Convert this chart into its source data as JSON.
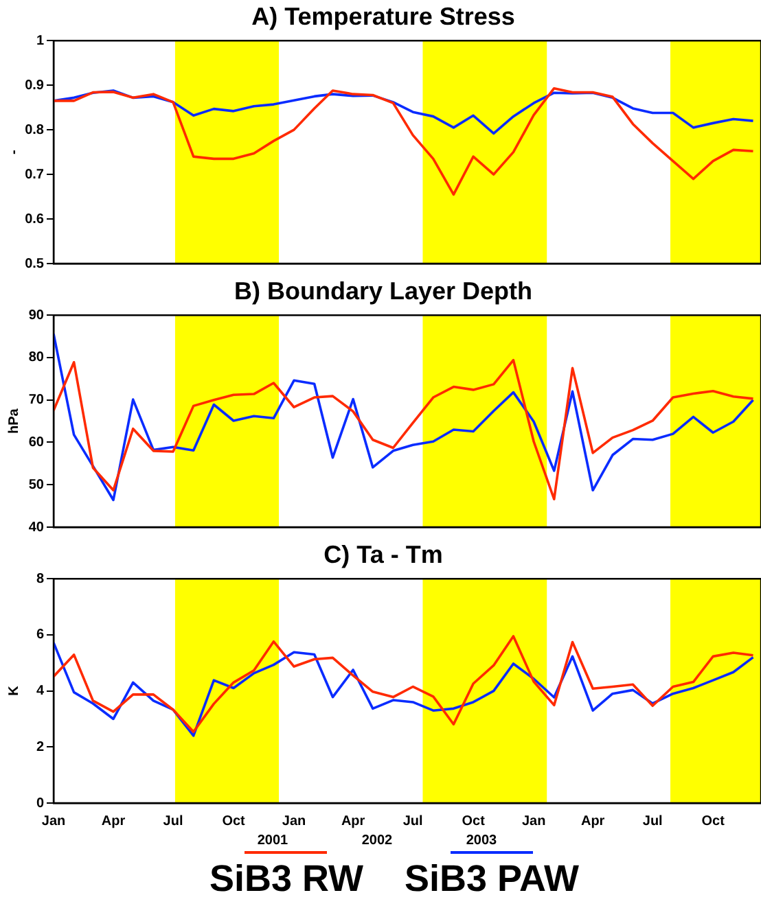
{
  "chart_data": [
    {
      "type": "line",
      "title": "A) Temperature Stress",
      "ylabel": "-",
      "marker": "none",
      "tick_labels": "y",
      "x": [
        "2000-01",
        "2000-02",
        "2000-03",
        "2000-04",
        "2000-05",
        "2000-06",
        "2000-07",
        "2000-08",
        "2000-09",
        "2000-10",
        "2000-11",
        "2000-12",
        "2001-01",
        "2001-02",
        "2001-03",
        "2001-04",
        "2001-05",
        "2001-06",
        "2001-07",
        "2001-08",
        "2001-09",
        "2001-10",
        "2001-11",
        "2001-12",
        "2002-01",
        "2002-02",
        "2002-03",
        "2002-04",
        "2002-05",
        "2002-06",
        "2002-07",
        "2002-08",
        "2002-09",
        "2002-10",
        "2002-11",
        "2002-12"
      ],
      "xlim": [
        "2000-01",
        "2002-12-13"
      ],
      "xticks": [
        {
          "value": "2000-01",
          "label": null
        },
        {
          "value": "2000-04",
          "label": null
        },
        {
          "value": "2000-07",
          "label": null
        },
        {
          "value": "2000-10",
          "label": null
        },
        {
          "value": "2001-01",
          "label": null
        },
        {
          "value": "2001-04",
          "label": null
        },
        {
          "value": "2001-07",
          "label": null
        },
        {
          "value": "2001-10",
          "label": null
        },
        {
          "value": "2002-01",
          "label": null
        },
        {
          "value": "2002-04",
          "label": null
        },
        {
          "value": "2002-07",
          "label": null
        },
        {
          "value": "2002-10",
          "label": null
        }
      ],
      "ylim": [
        0.5,
        1.0
      ],
      "yticks": [
        0.5,
        0.6,
        0.7,
        0.8,
        0.9,
        1.0
      ],
      "bands": [
        {
          "axis": "x",
          "from": "2000-07-04",
          "to": "2000-12-09",
          "color": "#ffff00"
        },
        {
          "axis": "x",
          "from": "2001-07-16",
          "to": "2002-01-21",
          "color": "#ffff00"
        },
        {
          "axis": "x",
          "from": "2002-07-28",
          "to": "2002-12-13",
          "color": "#ffff00"
        }
      ],
      "series": [
        {
          "color": "#ff2a00",
          "values": [
            0.865,
            0.865,
            0.884,
            0.885,
            0.872,
            0.88,
            0.862,
            0.74,
            0.735,
            0.735,
            0.747,
            0.775,
            0.8,
            0.848,
            0.888,
            0.88,
            0.878,
            0.86,
            0.788,
            0.735,
            0.655,
            0.74,
            0.7,
            0.75,
            0.833,
            0.893,
            0.884,
            0.884,
            0.874,
            0.813,
            0.77,
            0.73,
            0.69,
            0.73,
            0.755,
            0.752
          ]
        },
        {
          "color": "#0a2cff",
          "values": [
            0.865,
            0.872,
            0.883,
            0.888,
            0.872,
            0.875,
            0.862,
            0.832,
            0.847,
            0.842,
            0.853,
            0.857,
            0.866,
            0.875,
            0.88,
            0.876,
            0.877,
            0.862,
            0.84,
            0.83,
            0.805,
            0.832,
            0.792,
            0.83,
            0.86,
            0.883,
            0.882,
            0.883,
            0.872,
            0.848,
            0.838,
            0.838,
            0.805,
            0.815,
            0.824,
            0.82
          ]
        }
      ]
    },
    {
      "type": "line",
      "title": "B) Boundary Layer Depth",
      "ylabel": "hPa",
      "marker": "none",
      "tick_labels": "y",
      "x": [
        "2000-01",
        "2000-02",
        "2000-03",
        "2000-04",
        "2000-05",
        "2000-06",
        "2000-07",
        "2000-08",
        "2000-09",
        "2000-10",
        "2000-11",
        "2000-12",
        "2001-01",
        "2001-02",
        "2001-03",
        "2001-04",
        "2001-05",
        "2001-06",
        "2001-07",
        "2001-08",
        "2001-09",
        "2001-10",
        "2001-11",
        "2001-12",
        "2002-01",
        "2002-02",
        "2002-03",
        "2002-04",
        "2002-05",
        "2002-06",
        "2002-07",
        "2002-08",
        "2002-09",
        "2002-10",
        "2002-11",
        "2002-12"
      ],
      "xlim": [
        "2000-01",
        "2002-12-13"
      ],
      "xticks": [
        {
          "value": "2000-01",
          "label": null
        },
        {
          "value": "2000-04",
          "label": null
        },
        {
          "value": "2000-07",
          "label": null
        },
        {
          "value": "2000-10",
          "label": null
        },
        {
          "value": "2001-01",
          "label": null
        },
        {
          "value": "2001-04",
          "label": null
        },
        {
          "value": "2001-07",
          "label": null
        },
        {
          "value": "2001-10",
          "label": null
        },
        {
          "value": "2002-01",
          "label": null
        },
        {
          "value": "2002-04",
          "label": null
        },
        {
          "value": "2002-07",
          "label": null
        },
        {
          "value": "2002-10",
          "label": null
        }
      ],
      "ylim": [
        40,
        90
      ],
      "yticks": [
        40,
        50,
        60,
        70,
        80,
        90
      ],
      "bands": [
        {
          "axis": "x",
          "from": "2000-07-04",
          "to": "2000-12-09",
          "color": "#ffff00"
        },
        {
          "axis": "x",
          "from": "2001-07-16",
          "to": "2002-01-21",
          "color": "#ffff00"
        },
        {
          "axis": "x",
          "from": "2002-07-28",
          "to": "2002-12-13",
          "color": "#ffff00"
        }
      ],
      "series": [
        {
          "color": "#ff2a00",
          "values": [
            67.5,
            78.9,
            54,
            48.7,
            63.2,
            58,
            57.8,
            68.6,
            70,
            71.2,
            71.4,
            74,
            68.3,
            70.6,
            70.9,
            67.3,
            60.6,
            58.7,
            64.6,
            70.6,
            73.1,
            72.4,
            73.7,
            79.4,
            60.2,
            46.6,
            77.5,
            57.5,
            61.1,
            62.9,
            65.1,
            70.6,
            71.5,
            72.1,
            70.8,
            70.3
          ]
        },
        {
          "color": "#0a2cff",
          "values": [
            85.6,
            61.8,
            54.4,
            46.4,
            70.1,
            58.2,
            58.9,
            58.1,
            68.9,
            65.1,
            66.2,
            65.7,
            74.6,
            73.8,
            56.4,
            70.2,
            54.1,
            58,
            59.4,
            60.2,
            63,
            62.6,
            67.4,
            71.8,
            64.9,
            53.3,
            72,
            48.7,
            57,
            60.8,
            60.6,
            62,
            66,
            62.3,
            64.9,
            70
          ]
        }
      ]
    },
    {
      "type": "line",
      "title": "C) Ta - Tm",
      "ylabel": "K",
      "marker": "none",
      "legend": "bottom",
      "x": [
        "2000-01",
        "2000-02",
        "2000-03",
        "2000-04",
        "2000-05",
        "2000-06",
        "2000-07",
        "2000-08",
        "2000-09",
        "2000-10",
        "2000-11",
        "2000-12",
        "2001-01",
        "2001-02",
        "2001-03",
        "2001-04",
        "2001-05",
        "2001-06",
        "2001-07",
        "2001-08",
        "2001-09",
        "2001-10",
        "2001-11",
        "2001-12",
        "2002-01",
        "2002-02",
        "2002-03",
        "2002-04",
        "2002-05",
        "2002-06",
        "2002-07",
        "2002-08",
        "2002-09",
        "2002-10",
        "2002-11",
        "2002-12"
      ],
      "xlim": [
        "2000-01",
        "2002-12-13"
      ],
      "xticks": [
        {
          "value": "2000-01",
          "label": "Jan"
        },
        {
          "value": "2000-04",
          "label": "Apr"
        },
        {
          "value": "2000-07",
          "label": "Jul"
        },
        {
          "value": "2000-10",
          "label": "Oct"
        },
        {
          "value": "2001-01",
          "label": "Jan"
        },
        {
          "value": "2001-04",
          "label": "Apr"
        },
        {
          "value": "2001-07",
          "label": "Jul"
        },
        {
          "value": "2001-10",
          "label": "Oct"
        },
        {
          "value": "2002-01",
          "label": "Jan"
        },
        {
          "value": "2002-04",
          "label": "Apr"
        },
        {
          "value": "2002-07",
          "label": "Jul"
        },
        {
          "value": "2002-10",
          "label": "Oct"
        }
      ],
      "ylim": [
        0,
        8
      ],
      "yticks": [
        0,
        2,
        4,
        6,
        8
      ],
      "annotations": [
        "2001",
        "2002",
        "2003"
      ],
      "bands": [
        {
          "axis": "x",
          "from": "2000-07-04",
          "to": "2000-12-09",
          "color": "#ffff00"
        },
        {
          "axis": "x",
          "from": "2001-07-16",
          "to": "2002-01-21",
          "color": "#ffff00"
        },
        {
          "axis": "x",
          "from": "2002-07-28",
          "to": "2002-12-13",
          "color": "#ffff00"
        }
      ],
      "series": [
        {
          "name": "SiB3 RW",
          "color": "#ff2a00",
          "values": [
            4.51,
            5.29,
            3.65,
            3.26,
            3.87,
            3.87,
            3.33,
            2.54,
            3.54,
            4.3,
            4.73,
            5.76,
            4.87,
            5.13,
            5.18,
            4.55,
            3.97,
            3.78,
            4.15,
            3.8,
            2.81,
            4.26,
            4.91,
            5.95,
            4.33,
            3.49,
            5.74,
            4.08,
            4.15,
            4.23,
            3.47,
            4.15,
            4.32,
            5.23,
            5.36,
            5.27
          ]
        },
        {
          "name": "SiB3 PAW",
          "color": "#0a2cff",
          "values": [
            5.72,
            3.95,
            3.55,
            3.0,
            4.3,
            3.65,
            3.33,
            2.4,
            4.38,
            4.1,
            4.63,
            4.93,
            5.38,
            5.3,
            3.78,
            4.75,
            3.37,
            3.67,
            3.6,
            3.3,
            3.37,
            3.6,
            4.0,
            4.97,
            4.43,
            3.77,
            5.23,
            3.3,
            3.9,
            4.03,
            3.55,
            3.9,
            4.1,
            4.38,
            4.67,
            5.2
          ]
        }
      ]
    }
  ]
}
